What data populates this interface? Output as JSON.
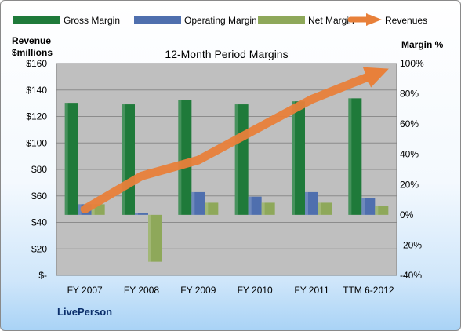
{
  "chart_data": {
    "type": "bar",
    "title": "12-Month Period Margins",
    "categories": [
      "FY 2007",
      "FY 2008",
      "FY 2009",
      "FY 2010",
      "FY 2011",
      "TTM 6-2012"
    ],
    "left_axis": {
      "label_line1": "Revenue",
      "label_line2": "$millions",
      "range": [
        0,
        160
      ],
      "ticks": [
        "$-",
        "$20",
        "$40",
        "$60",
        "$80",
        "$100",
        "$120",
        "$140",
        "$160"
      ]
    },
    "right_axis": {
      "label": "Margin %",
      "range": [
        -40,
        100
      ],
      "ticks": [
        "-40%",
        "-20%",
        "0%",
        "20%",
        "40%",
        "60%",
        "80%",
        "100%"
      ]
    },
    "series": [
      {
        "name": "Gross Margin",
        "kind": "bar",
        "axis": "right",
        "color": "#1f7a3a",
        "values": [
          74,
          73,
          76,
          73,
          75,
          77
        ]
      },
      {
        "name": "Operating Margin",
        "kind": "bar",
        "axis": "right",
        "color": "#4f6fae",
        "values": [
          7,
          1,
          15,
          12,
          15,
          11
        ]
      },
      {
        "name": "Net Margin",
        "kind": "bar",
        "axis": "right",
        "color": "#8ea85a",
        "values": [
          7,
          -31,
          8,
          8,
          8,
          6
        ]
      },
      {
        "name": "Revenues",
        "kind": "line",
        "axis": "left",
        "color": "#e8803a",
        "values": [
          50,
          75,
          87,
          110,
          133,
          150
        ]
      }
    ],
    "grid": true,
    "legend_position": "top",
    "plot_background": "#bfbfbf"
  },
  "footer": {
    "company": "LivePerson"
  }
}
